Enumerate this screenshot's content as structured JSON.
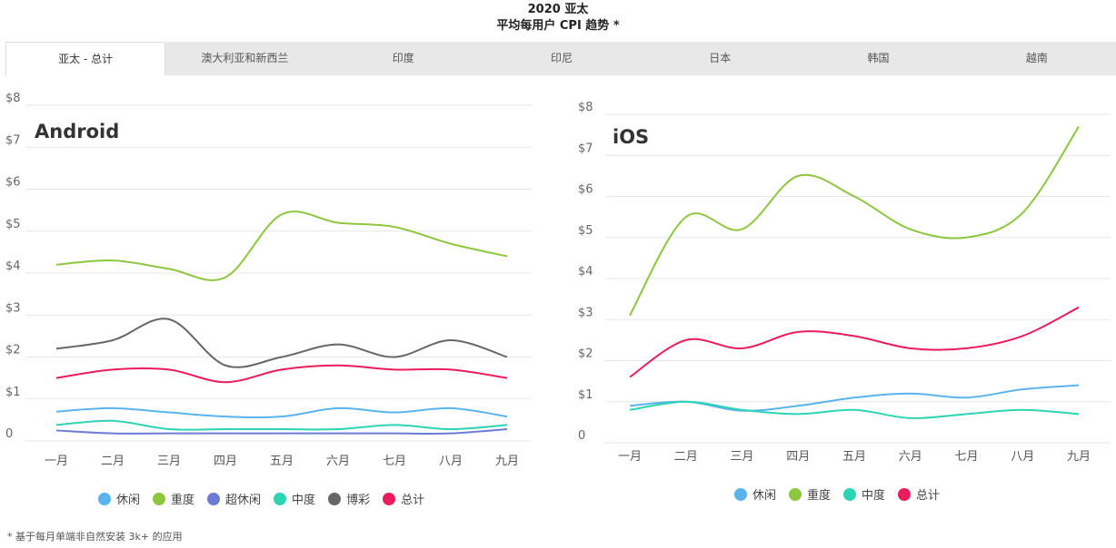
{
  "title": {
    "line1": "2020 亚太",
    "line2": "平均每用户 CPI 趋势 *"
  },
  "tabs": [
    {
      "label": "亚太 - 总计",
      "active": true
    },
    {
      "label": "澳大利亚和新西兰",
      "active": false
    },
    {
      "label": "印度",
      "active": false
    },
    {
      "label": "印尼",
      "active": false
    },
    {
      "label": "日本",
      "active": false
    },
    {
      "label": "韩国",
      "active": false
    },
    {
      "label": "越南",
      "active": false
    }
  ],
  "footnote": "* 基于每月单端非自然安装 3k+ 的应用",
  "chart_data": [
    {
      "type": "line",
      "title": "Android",
      "categories": [
        "一月",
        "二月",
        "三月",
        "四月",
        "五月",
        "六月",
        "七月",
        "八月",
        "九月"
      ],
      "y_ticks": [
        "0",
        "$1",
        "$2",
        "$3",
        "$4",
        "$5",
        "$6",
        "$7",
        "$8"
      ],
      "ylim": [
        0,
        8
      ],
      "series": [
        {
          "name": "休闲",
          "color": "#5ab4ec",
          "values": [
            0.7,
            0.78,
            0.68,
            0.58,
            0.58,
            0.78,
            0.68,
            0.78,
            0.58
          ]
        },
        {
          "name": "重度",
          "color": "#8dc63f",
          "values": [
            4.2,
            4.3,
            4.1,
            3.9,
            5.4,
            5.2,
            5.1,
            4.7,
            4.4
          ]
        },
        {
          "name": "超休闲",
          "color": "#6b7bd6",
          "values": [
            0.25,
            0.18,
            0.18,
            0.18,
            0.18,
            0.18,
            0.18,
            0.18,
            0.28
          ]
        },
        {
          "name": "中度",
          "color": "#2dd4b4",
          "values": [
            0.38,
            0.48,
            0.28,
            0.28,
            0.28,
            0.28,
            0.38,
            0.28,
            0.38
          ]
        },
        {
          "name": "博彩",
          "color": "#666666",
          "values": [
            2.2,
            2.4,
            2.9,
            1.8,
            2.0,
            2.3,
            2.0,
            2.4,
            2.0
          ]
        },
        {
          "name": "总计",
          "color": "#ec1c5c",
          "values": [
            1.5,
            1.7,
            1.7,
            1.4,
            1.7,
            1.8,
            1.7,
            1.7,
            1.5
          ]
        }
      ],
      "legend_position": "bottom",
      "grid": true
    },
    {
      "type": "line",
      "title": "iOS",
      "categories": [
        "一月",
        "二月",
        "三月",
        "四月",
        "五月",
        "六月",
        "七月",
        "八月",
        "九月"
      ],
      "y_ticks": [
        "0",
        "$1",
        "$2",
        "$3",
        "$4",
        "$5",
        "$6",
        "$7",
        "$8"
      ],
      "ylim": [
        0,
        8
      ],
      "series": [
        {
          "name": "休闲",
          "color": "#5ab4ec",
          "values": [
            0.9,
            1.0,
            0.78,
            0.9,
            1.1,
            1.2,
            1.1,
            1.3,
            1.4
          ]
        },
        {
          "name": "重度",
          "color": "#8dc63f",
          "values": [
            3.1,
            5.5,
            5.2,
            6.5,
            6.0,
            5.2,
            5.0,
            5.6,
            7.7
          ]
        },
        {
          "name": "中度",
          "color": "#2dd4b4",
          "values": [
            0.8,
            1.0,
            0.8,
            0.7,
            0.8,
            0.6,
            0.7,
            0.8,
            0.7
          ]
        },
        {
          "name": "总计",
          "color": "#ec1c5c",
          "values": [
            1.6,
            2.5,
            2.3,
            2.7,
            2.6,
            2.3,
            2.3,
            2.6,
            3.3
          ]
        }
      ],
      "legend_position": "bottom",
      "grid": true
    }
  ]
}
